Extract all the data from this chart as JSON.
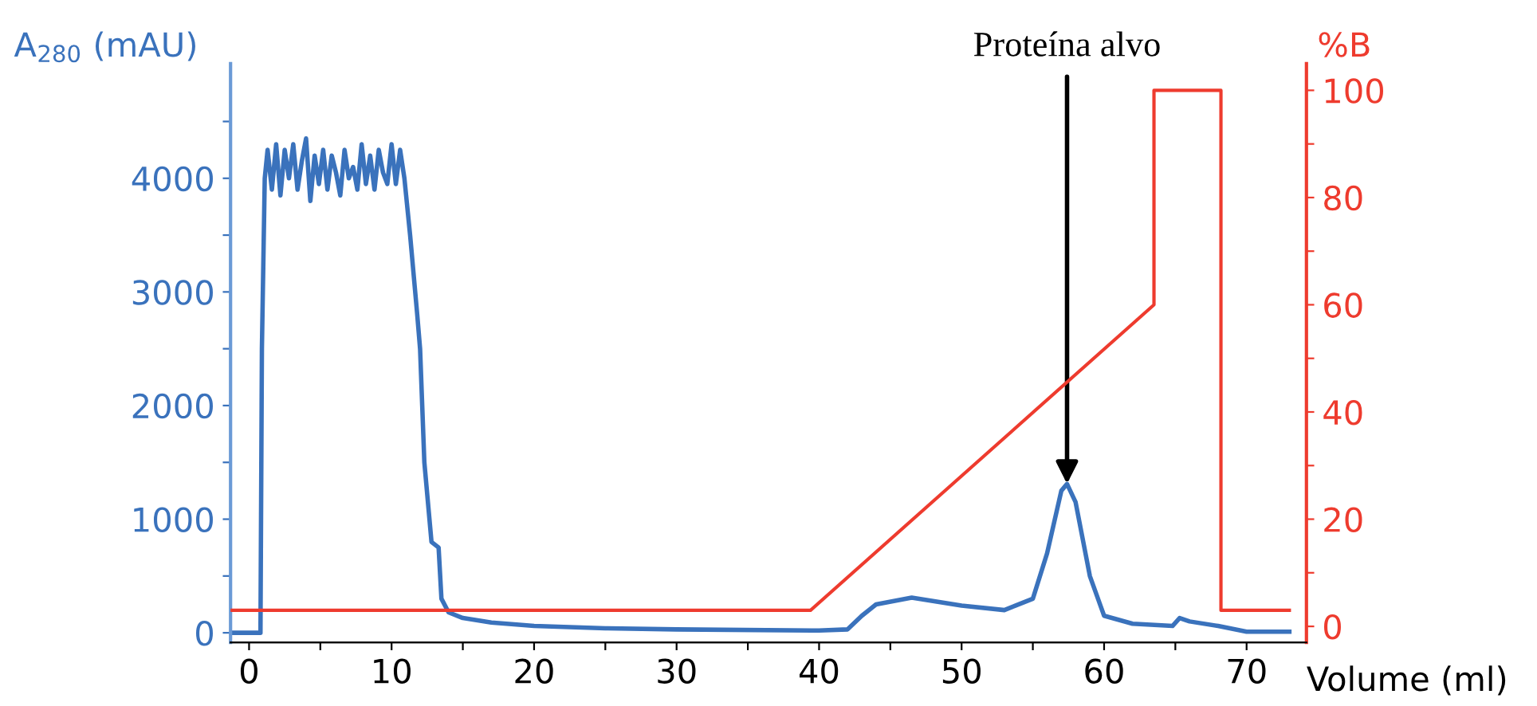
{
  "chart_data": {
    "type": "line",
    "xlabel": "Volume (ml)",
    "ylabel": "A$_{280}$ (mAU)",
    "y2label": "%B",
    "xlim": [
      -1.3,
      74.2
    ],
    "ylim": [
      -85,
      5010
    ],
    "y2lim": [
      -3,
      105
    ],
    "xticks": [
      0,
      {
        "value": 5,
        "label": null
      },
      10,
      {
        "value": 15,
        "label": null
      },
      20,
      {
        "value": 25,
        "label": null
      },
      30,
      {
        "value": 35,
        "label": null
      },
      40,
      {
        "value": 45,
        "label": null
      },
      50,
      {
        "value": 55,
        "label": null
      },
      60,
      {
        "value": 65,
        "label": null
      },
      70
    ],
    "yticks": [
      0,
      {
        "value": 500,
        "label": null
      },
      1000,
      {
        "value": 1500,
        "label": null
      },
      2000,
      {
        "value": 2500,
        "label": null
      },
      3000,
      {
        "value": 3500,
        "label": null
      },
      4000,
      {
        "value": 4500,
        "label": null
      }
    ],
    "y2ticks": [
      0,
      {
        "value": 10,
        "label": null
      },
      20,
      {
        "value": 30,
        "label": null
      },
      40,
      {
        "value": 50,
        "label": null
      },
      60,
      {
        "value": 70,
        "label": null
      },
      80,
      {
        "value": 90,
        "label": null
      },
      100
    ],
    "grid": false,
    "legend": false,
    "marker": "none",
    "line_style": "solid",
    "series": [
      {
        "color": "#3a72bc",
        "x": [
          -1.3,
          0.8,
          0.9,
          1.1,
          1.3,
          1.6,
          1.9,
          2.2,
          2.5,
          2.8,
          3.1,
          3.4,
          3.7,
          4.0,
          4.3,
          4.6,
          4.9,
          5.2,
          5.5,
          5.8,
          6.1,
          6.4,
          6.7,
          7.0,
          7.3,
          7.6,
          7.9,
          8.2,
          8.5,
          8.8,
          9.1,
          9.4,
          9.7,
          10.0,
          10.3,
          10.6,
          10.9,
          11.3,
          11.8,
          12.0,
          12.3,
          12.8,
          13.3,
          13.5,
          14.0,
          15.0,
          17.0,
          20.0,
          25.0,
          30.0,
          40.0,
          42.0,
          43.0,
          44.0,
          46.5,
          50.0,
          53.0,
          55.0,
          56.0,
          57.0,
          57.4,
          58.0,
          59.0,
          60.0,
          62.0,
          64.8,
          65.3,
          66.0,
          68.0,
          70.0,
          73.0
        ],
        "values": [
          0,
          0,
          2500,
          4000,
          4250,
          3900,
          4300,
          3850,
          4250,
          4000,
          4300,
          3900,
          4150,
          4350,
          3800,
          4200,
          3950,
          4250,
          3900,
          4200,
          4050,
          3850,
          4250,
          4000,
          4100,
          3900,
          4300,
          3950,
          4200,
          3900,
          4250,
          4050,
          3950,
          4300,
          3950,
          4250,
          4000,
          3500,
          2800,
          2500,
          1500,
          800,
          750,
          300,
          180,
          130,
          90,
          60,
          40,
          30,
          20,
          30,
          150,
          250,
          310,
          240,
          200,
          300,
          700,
          1250,
          1310,
          1150,
          500,
          150,
          80,
          60,
          130,
          100,
          60,
          10,
          10
        ]
      },
      {
        "color": "#ee3b2e",
        "axis": "y2",
        "x": [
          -1.3,
          39.4,
          63.5,
          63.5,
          68.2,
          68.2,
          73.0
        ],
        "values": [
          3,
          3,
          60,
          100,
          100,
          3,
          3
        ]
      }
    ],
    "annotations": [
      {
        "text": "Proteína alvo",
        "x": 57.4,
        "y": 1310
      }
    ]
  }
}
